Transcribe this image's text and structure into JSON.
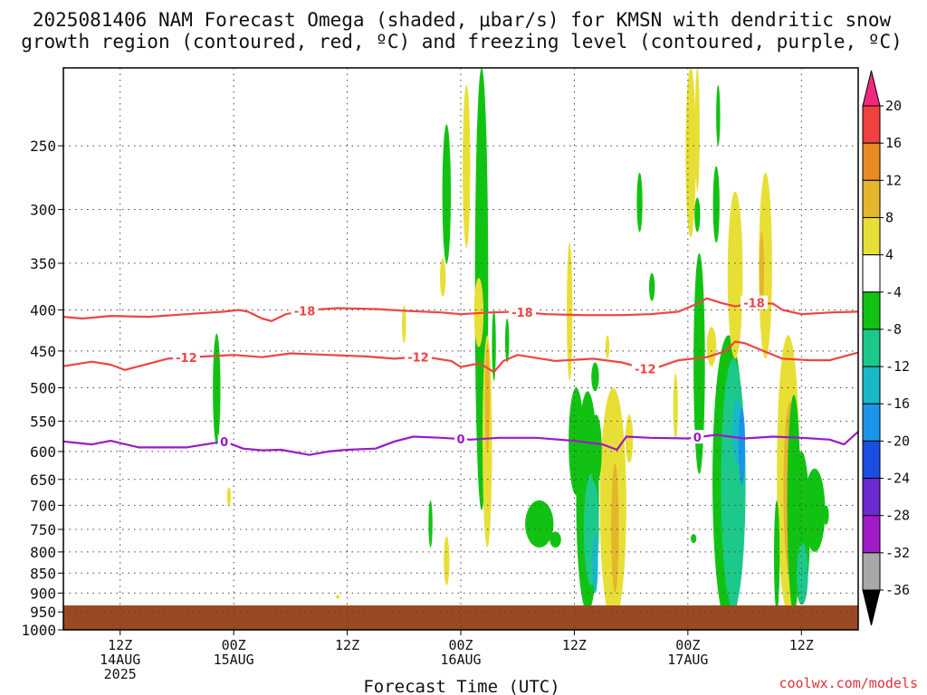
{
  "chart_data": {
    "type": "heatmap",
    "title_lines": [
      "2025081406 NAM Forecast Omega (shaded, μbar/s) for KMSN with dendritic snow",
      "growth region (contoured, red, ºC) and freezing level (contoured, purple, ºC)"
    ],
    "xlabel": "Forecast Time (UTC)",
    "ylabel": "",
    "y_scale": "log",
    "y_inverted": true,
    "ylim": [
      1000,
      200
    ],
    "y_ticks": [
      250,
      300,
      350,
      400,
      450,
      500,
      550,
      600,
      650,
      700,
      750,
      800,
      850,
      900,
      950,
      1000
    ],
    "x_range_hours": [
      0,
      84
    ],
    "x_ticks": [
      {
        "hour": 6,
        "lines": [
          "12Z",
          "14AUG",
          "2025"
        ]
      },
      {
        "hour": 18,
        "lines": [
          "00Z",
          "15AUG"
        ]
      },
      {
        "hour": 30,
        "lines": [
          "12Z"
        ]
      },
      {
        "hour": 42,
        "lines": [
          "00Z",
          "16AUG"
        ]
      },
      {
        "hour": 54,
        "lines": [
          "12Z"
        ]
      },
      {
        "hour": 66,
        "lines": [
          "00Z",
          "17AUG"
        ]
      },
      {
        "hour": 78,
        "lines": [
          "12Z"
        ]
      }
    ],
    "colorbar": {
      "labels": [
        "20",
        "16",
        "12",
        "8",
        "4",
        "-4",
        "-8",
        "-12",
        "-16",
        "-20",
        "-24",
        "-28",
        "-32",
        "-36"
      ],
      "colors": [
        "#f0297e",
        "#f04040",
        "#e98b23",
        "#e6b52e",
        "#e8df36",
        "#ffffff",
        "#12c212",
        "#1cc98a",
        "#18b8c8",
        "#1a94e8",
        "#1a4ee0",
        "#6a2ad0",
        "#a01ac8",
        "#a8a8a8",
        "#000000"
      ]
    },
    "ground_color": "#9a4a22",
    "contours": [
      {
        "name": "-18",
        "color": "#ee4444",
        "label_hours": [
          25.5,
          48.5,
          73.0
        ],
        "points": [
          [
            0,
            408
          ],
          [
            2,
            410
          ],
          [
            5,
            407
          ],
          [
            9,
            408
          ],
          [
            13,
            405
          ],
          [
            17,
            402
          ],
          [
            18.5,
            400
          ],
          [
            19.5,
            402
          ],
          [
            21,
            410
          ],
          [
            22,
            413
          ],
          [
            23.5,
            405
          ],
          [
            26,
            400
          ],
          [
            29,
            398
          ],
          [
            33,
            399
          ],
          [
            36,
            401
          ],
          [
            40,
            403
          ],
          [
            42,
            405
          ],
          [
            45,
            403
          ],
          [
            48,
            402
          ],
          [
            51,
            405
          ],
          [
            55,
            406
          ],
          [
            59,
            406
          ],
          [
            62,
            405
          ],
          [
            65,
            402
          ],
          [
            67,
            393
          ],
          [
            68,
            387
          ],
          [
            69.5,
            392
          ],
          [
            71,
            396
          ],
          [
            73,
            392
          ],
          [
            75,
            393
          ],
          [
            76,
            400
          ],
          [
            78,
            405
          ],
          [
            81,
            403
          ],
          [
            84,
            402
          ]
        ]
      },
      {
        "name": "-12",
        "color": "#ee4444",
        "label_hours": [
          13.0,
          37.5,
          61.5
        ],
        "points": [
          [
            0,
            470
          ],
          [
            3,
            464
          ],
          [
            5,
            468
          ],
          [
            6.5,
            475
          ],
          [
            8,
            470
          ],
          [
            11,
            460
          ],
          [
            15,
            457
          ],
          [
            18,
            455
          ],
          [
            21,
            458
          ],
          [
            24,
            453
          ],
          [
            28,
            455
          ],
          [
            32,
            457
          ],
          [
            35,
            460
          ],
          [
            38,
            457
          ],
          [
            41,
            463
          ],
          [
            42,
            471
          ],
          [
            44,
            466
          ],
          [
            45.5,
            478
          ],
          [
            46.5,
            463
          ],
          [
            48,
            455
          ],
          [
            52,
            463
          ],
          [
            56,
            460
          ],
          [
            59,
            465
          ],
          [
            62,
            475
          ],
          [
            65,
            462
          ],
          [
            68,
            458
          ],
          [
            70,
            450
          ],
          [
            71,
            438
          ],
          [
            72,
            440
          ],
          [
            74,
            450
          ],
          [
            76,
            460
          ],
          [
            79,
            462
          ],
          [
            81,
            462
          ],
          [
            84,
            452
          ]
        ]
      },
      {
        "name": "0",
        "color": "#9a1ac6",
        "label_hours": [
          17.0,
          42.0,
          67.0
        ],
        "points": [
          [
            0,
            583
          ],
          [
            3,
            588
          ],
          [
            5,
            582
          ],
          [
            8,
            593
          ],
          [
            13,
            593
          ],
          [
            15,
            588
          ],
          [
            17,
            583
          ],
          [
            19,
            595
          ],
          [
            21,
            598
          ],
          [
            23,
            597
          ],
          [
            26,
            606
          ],
          [
            28,
            600
          ],
          [
            30,
            597
          ],
          [
            33,
            595
          ],
          [
            35,
            583
          ],
          [
            37,
            575
          ],
          [
            40,
            577
          ],
          [
            43,
            580
          ],
          [
            46,
            577
          ],
          [
            50,
            577
          ],
          [
            54,
            582
          ],
          [
            57,
            588
          ],
          [
            58.5,
            597
          ],
          [
            59.5,
            575
          ],
          [
            62,
            577
          ],
          [
            66,
            578
          ],
          [
            69,
            572
          ],
          [
            72,
            578
          ],
          [
            75,
            575
          ],
          [
            78,
            577
          ],
          [
            81,
            580
          ],
          [
            82.5,
            588
          ],
          [
            84,
            567
          ]
        ]
      }
    ],
    "annotations": [
      "coolwx.com/models"
    ]
  }
}
